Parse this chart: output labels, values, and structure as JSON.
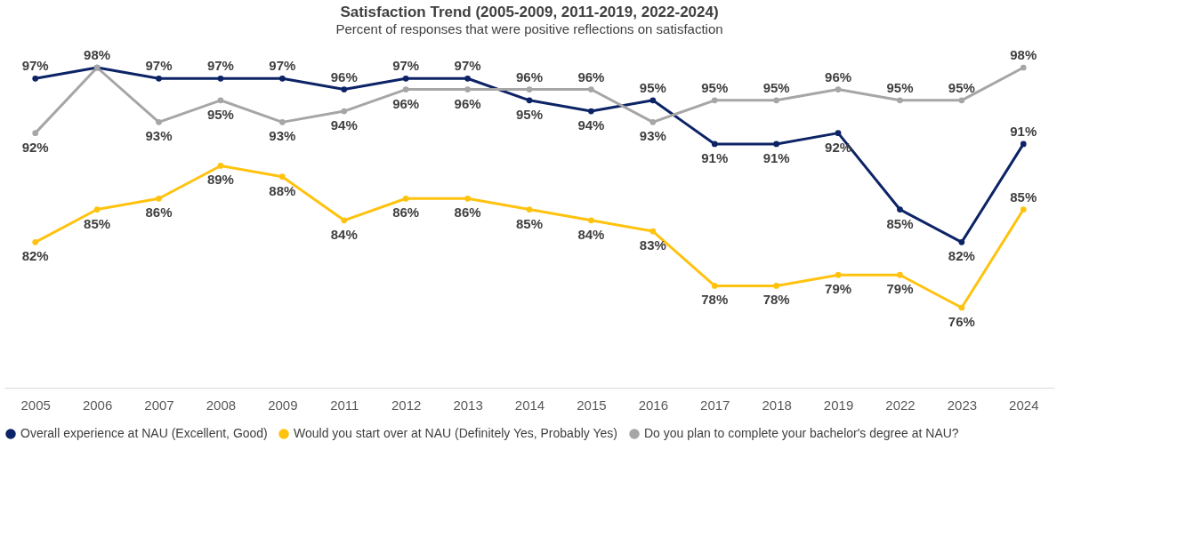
{
  "chart_data": {
    "type": "line",
    "title": "Satisfaction Trend (2005-2009, 2011-2019, 2022-2024)",
    "subtitle": "Percent of responses that were positive reflections on satisfaction",
    "categories": [
      "2005",
      "2006",
      "2007",
      "2008",
      "2009",
      "2011",
      "2012",
      "2013",
      "2014",
      "2015",
      "2016",
      "2017",
      "2018",
      "2019",
      "2022",
      "2023",
      "2024"
    ],
    "series": [
      {
        "name": "Overall experience at NAU (Excellent, Good)",
        "color": "#0c2366",
        "values": [
          97,
          98,
          97,
          97,
          97,
          96,
          97,
          97,
          95,
          94,
          95,
          91,
          91,
          92,
          85,
          82,
          91
        ],
        "value_labels": [
          "97%",
          null,
          "97%",
          "97%",
          "97%",
          "96%",
          "97%",
          "97%",
          "95%",
          "94%",
          "95%",
          "91%",
          "91%",
          "92%",
          "85%",
          "82%",
          "91%"
        ]
      },
      {
        "name": "Would you start over at NAU (Definitely Yes, Probably Yes)",
        "color": "#ffc20e",
        "values": [
          82,
          85,
          86,
          89,
          88,
          84,
          86,
          86,
          85,
          84,
          83,
          78,
          78,
          79,
          79,
          76,
          85
        ],
        "value_labels": [
          "82%",
          "85%",
          "86%",
          "89%",
          "88%",
          "84%",
          "86%",
          "86%",
          "85%",
          "84%",
          "83%",
          "78%",
          "78%",
          "79%",
          "79%",
          "76%",
          "85%"
        ]
      },
      {
        "name": "Do you plan to complete your bachelor's degree at NAU?",
        "color": "#a6a6a6",
        "values": [
          92,
          98,
          93,
          95,
          93,
          94,
          96,
          96,
          96,
          96,
          93,
          95,
          95,
          96,
          95,
          95,
          98
        ],
        "value_labels": [
          "92%",
          "98%",
          "93%",
          "95%",
          "93%",
          "94%",
          "96%",
          "96%",
          "96%",
          "96%",
          "93%",
          "95%",
          "95%",
          "96%",
          "95%",
          "95%",
          "98%"
        ]
      }
    ],
    "tick_labels": "x",
    "grid": false,
    "legend": "bottom",
    "marker": "circle",
    "line_style": "solid"
  }
}
